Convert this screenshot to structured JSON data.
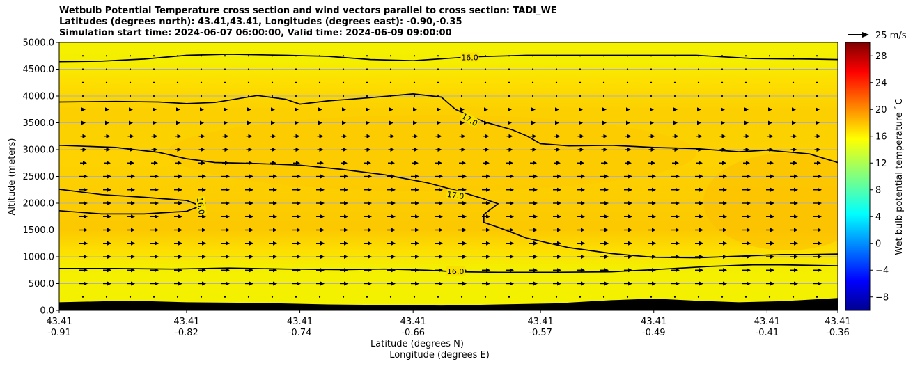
{
  "chart_data": {
    "type": "heatmap",
    "title_lines": [
      "Wetbulb Potential Temperature cross section and wind vectors parallel to cross section: TADI_WE",
      "Latitudes (degrees north): 43.41,43.41, Longitudes (degrees east): -0.90,-0.35",
      "Simulation start time: 2024-06-07 06:00:00, Valid time: 2024-06-09 09:00:00"
    ],
    "ylabel": "Altitude (meters)",
    "xlabel_lat": "Latitude (degrees N)",
    "xlabel_lon": "Longitude (degrees E)",
    "ylim": [
      0,
      5000
    ],
    "yticks": [
      "0.0",
      "500.0",
      "1000.0",
      "1500.0",
      "2000.0",
      "2500.0",
      "3000.0",
      "3500.0",
      "4000.0",
      "4500.0",
      "5000.0"
    ],
    "xticks": [
      {
        "lat": "43.41",
        "lon": "-0.91"
      },
      {
        "lat": "43.41",
        "lon": "-0.82"
      },
      {
        "lat": "43.41",
        "lon": "-0.74"
      },
      {
        "lat": "43.41",
        "lon": "-0.66"
      },
      {
        "lat": "43.41",
        "lon": "-0.57"
      },
      {
        "lat": "43.41",
        "lon": "-0.49"
      },
      {
        "lat": "43.41",
        "lon": "-0.41"
      },
      {
        "lat": "43.41",
        "lon": "-0.36"
      }
    ],
    "x_domain": [
      -0.91,
      -0.36
    ],
    "grid": true,
    "colorbar": {
      "label": "Wet bulb potential temperature ˚C",
      "min": -10,
      "max": 30,
      "ticks": [
        "−8",
        "−4",
        "0",
        "4",
        "8",
        "12",
        "16",
        "20",
        "24",
        "28"
      ],
      "tick_values": [
        -8,
        -4,
        0,
        4,
        8,
        12,
        16,
        20,
        24,
        28
      ],
      "colormap": "jet"
    },
    "quiver_key": {
      "label": "25 m/s",
      "speed": 25
    },
    "contours": [
      {
        "label": "16.0",
        "points": [
          [
            -0.91,
            4640
          ],
          [
            -0.88,
            4650
          ],
          [
            -0.85,
            4690
          ],
          [
            -0.82,
            4760
          ],
          [
            -0.79,
            4780
          ],
          [
            -0.75,
            4760
          ],
          [
            -0.72,
            4740
          ],
          [
            -0.69,
            4680
          ],
          [
            -0.66,
            4660
          ],
          [
            -0.62,
            4730
          ],
          [
            -0.58,
            4760
          ],
          [
            -0.54,
            4760
          ],
          [
            -0.5,
            4760
          ],
          [
            -0.46,
            4760
          ],
          [
            -0.42,
            4700
          ],
          [
            -0.38,
            4690
          ],
          [
            -0.36,
            4680
          ]
        ]
      },
      {
        "label": "17.0",
        "points": [
          [
            -0.91,
            3890
          ],
          [
            -0.87,
            3900
          ],
          [
            -0.84,
            3890
          ],
          [
            -0.82,
            3860
          ],
          [
            -0.8,
            3880
          ],
          [
            -0.77,
            4010
          ],
          [
            -0.75,
            3940
          ],
          [
            -0.74,
            3850
          ],
          [
            -0.72,
            3910
          ],
          [
            -0.69,
            3970
          ],
          [
            -0.66,
            4040
          ],
          [
            -0.64,
            3980
          ],
          [
            -0.63,
            3750
          ],
          [
            -0.61,
            3520
          ],
          [
            -0.59,
            3370
          ],
          [
            -0.58,
            3260
          ],
          [
            -0.57,
            3110
          ],
          [
            -0.55,
            3070
          ],
          [
            -0.52,
            3080
          ],
          [
            -0.49,
            3040
          ],
          [
            -0.46,
            3020
          ],
          [
            -0.43,
            2960
          ],
          [
            -0.41,
            2990
          ],
          [
            -0.38,
            2920
          ],
          [
            -0.36,
            2760
          ]
        ]
      },
      {
        "label": "17.0",
        "points": [
          [
            -0.91,
            3080
          ],
          [
            -0.87,
            3040
          ],
          [
            -0.84,
            2950
          ],
          [
            -0.82,
            2830
          ],
          [
            -0.8,
            2760
          ],
          [
            -0.77,
            2740
          ],
          [
            -0.74,
            2710
          ],
          [
            -0.71,
            2630
          ],
          [
            -0.68,
            2530
          ],
          [
            -0.65,
            2380
          ],
          [
            -0.63,
            2240
          ],
          [
            -0.61,
            2080
          ],
          [
            -0.6,
            1990
          ],
          [
            -0.61,
            1790
          ],
          [
            -0.61,
            1640
          ],
          [
            -0.6,
            1550
          ],
          [
            -0.58,
            1350
          ],
          [
            -0.55,
            1170
          ],
          [
            -0.52,
            1060
          ],
          [
            -0.49,
            990
          ],
          [
            -0.46,
            980
          ],
          [
            -0.43,
            1010
          ],
          [
            -0.4,
            1040
          ],
          [
            -0.38,
            1040
          ],
          [
            -0.36,
            1050
          ]
        ]
      },
      {
        "label": "16.0",
        "points": [
          [
            -0.91,
            2260
          ],
          [
            -0.88,
            2160
          ],
          [
            -0.85,
            2110
          ],
          [
            -0.82,
            2050
          ],
          [
            -0.81,
            1950
          ],
          [
            -0.82,
            1850
          ],
          [
            -0.85,
            1800
          ],
          [
            -0.88,
            1800
          ],
          [
            -0.91,
            1860
          ]
        ]
      },
      {
        "label": "16.0",
        "points": [
          [
            -0.91,
            780
          ],
          [
            -0.87,
            780
          ],
          [
            -0.83,
            770
          ],
          [
            -0.79,
            790
          ],
          [
            -0.75,
            770
          ],
          [
            -0.71,
            760
          ],
          [
            -0.68,
            770
          ],
          [
            -0.65,
            750
          ],
          [
            -0.63,
            720
          ],
          [
            -0.6,
            710
          ],
          [
            -0.56,
            710
          ],
          [
            -0.52,
            720
          ],
          [
            -0.49,
            760
          ],
          [
            -0.45,
            820
          ],
          [
            -0.42,
            850
          ],
          [
            -0.4,
            850
          ],
          [
            -0.38,
            840
          ],
          [
            -0.36,
            830
          ]
        ]
      }
    ],
    "terrain": [
      [
        -0.91,
        150
      ],
      [
        -0.86,
        180
      ],
      [
        -0.82,
        150
      ],
      [
        -0.77,
        140
      ],
      [
        -0.72,
        110
      ],
      [
        -0.68,
        100
      ],
      [
        -0.64,
        90
      ],
      [
        -0.6,
        110
      ],
      [
        -0.56,
        130
      ],
      [
        -0.52,
        190
      ],
      [
        -0.49,
        220
      ],
      [
        -0.46,
        180
      ],
      [
        -0.43,
        150
      ],
      [
        -0.4,
        170
      ],
      [
        -0.38,
        200
      ],
      [
        -0.36,
        230
      ]
    ]
  }
}
